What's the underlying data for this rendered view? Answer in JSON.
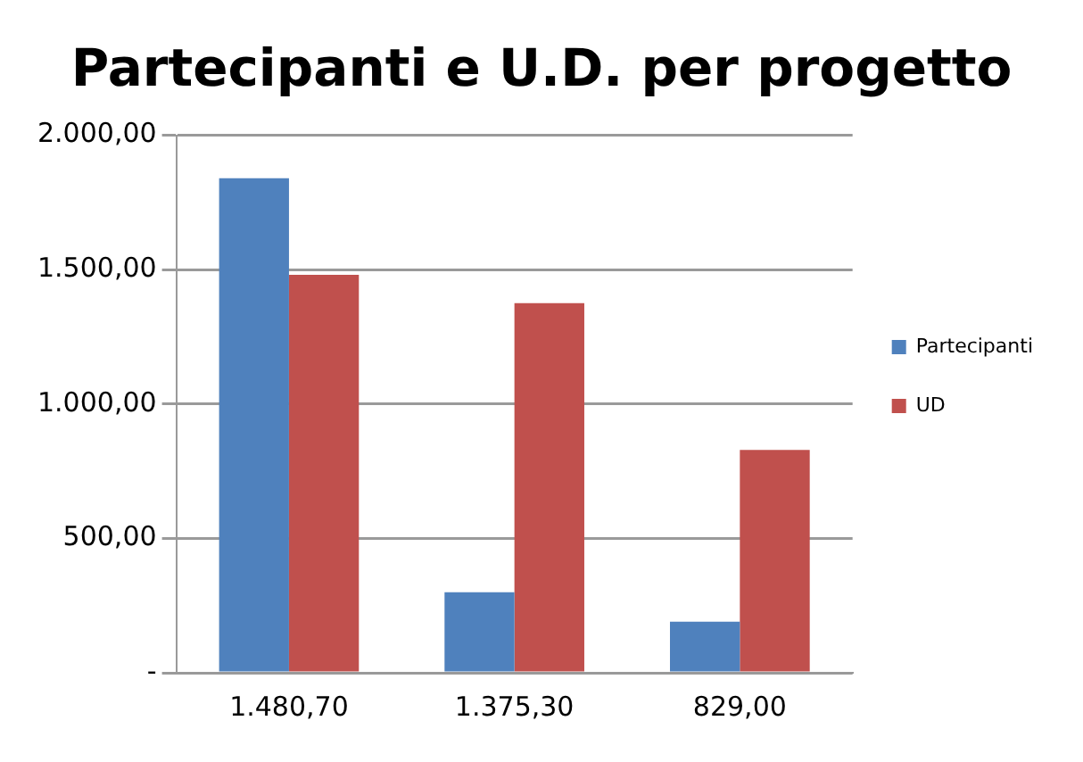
{
  "chart_data": {
    "type": "bar",
    "title": "Partecipanti e U.D. per progetto",
    "categories": [
      "1.480,70",
      "1.375,30",
      "829,00"
    ],
    "series": [
      {
        "name": "Partecipanti",
        "color": "#4f81bd",
        "values": [
          1840,
          300,
          190
        ]
      },
      {
        "name": "UD",
        "color": "#c0504d",
        "values": [
          1480.7,
          1375.3,
          829
        ]
      }
    ],
    "ylim": [
      0,
      2000
    ],
    "yticks": [
      {
        "value": 0,
        "label": "-"
      },
      {
        "value": 500,
        "label": "500,00"
      },
      {
        "value": 1000,
        "label": "1.000,00"
      },
      {
        "value": 1500,
        "label": "1.500,00"
      },
      {
        "value": 2000,
        "label": "2.000,00"
      }
    ],
    "grid": "y",
    "legend": "right"
  }
}
